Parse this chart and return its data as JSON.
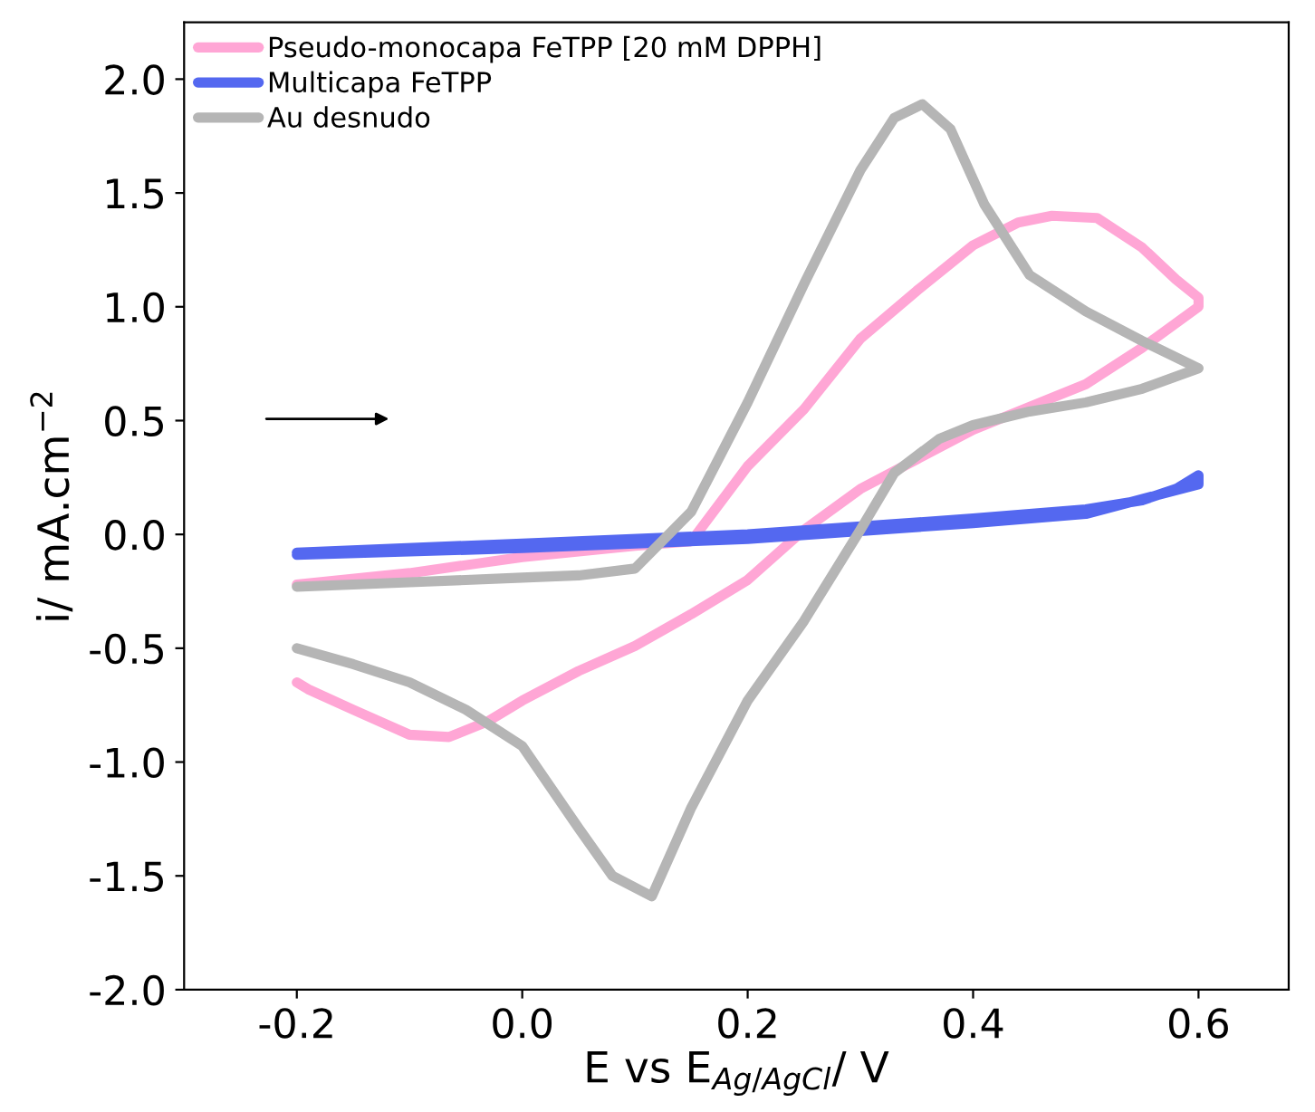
{
  "chart_data": {
    "type": "line",
    "xlabel": "E vs E$_{Ag/AgCl}$/ V",
    "ylabel": "i/ mA.cm$^{−2}$",
    "xlim": [
      -0.3,
      0.68
    ],
    "ylim": [
      -2.0,
      2.25
    ],
    "xticks": [
      -0.2,
      {
        "value": 0,
        "label": "0.0"
      },
      0.2,
      0.4,
      0.6
    ],
    "yticks": [
      {
        "value": -2,
        "label": "-2.0"
      },
      -1.5,
      {
        "value": -1,
        "label": "-1.0"
      },
      -0.5,
      {
        "value": 0,
        "label": "0.0"
      },
      0.5,
      {
        "value": 1,
        "label": "1.0"
      },
      1.5,
      {
        "value": 2,
        "label": "2.0"
      }
    ],
    "grid": false,
    "legend": "top left",
    "marker": "none",
    "line_style": "solid",
    "series": [
      {
        "name": "Pseudo-monocapa FeTPP [20 mM DPPH]",
        "color": "#ffa6d5",
        "x": [
          -0.2,
          -0.1,
          0.0,
          0.1,
          0.15,
          0.2,
          0.25,
          0.3,
          0.35,
          0.4,
          0.44,
          0.47,
          0.51,
          0.55,
          0.58,
          0.6,
          0.6,
          0.55,
          0.5,
          0.45,
          0.4,
          0.35,
          0.3,
          0.25,
          0.2,
          0.15,
          0.1,
          0.05,
          0.0,
          -0.03,
          -0.065,
          -0.1,
          -0.15,
          -0.19,
          -0.2
        ],
        "values": [
          -0.22,
          -0.17,
          -0.1,
          -0.05,
          -0.03,
          0.3,
          0.55,
          0.86,
          1.07,
          1.27,
          1.37,
          1.4,
          1.39,
          1.26,
          1.12,
          1.04,
          1.0,
          0.82,
          0.66,
          0.56,
          0.46,
          0.33,
          0.2,
          0.02,
          -0.2,
          -0.35,
          -0.49,
          -0.6,
          -0.73,
          -0.82,
          -0.89,
          -0.88,
          -0.77,
          -0.68,
          -0.65
        ]
      },
      {
        "name": "Multicapa FeTPP",
        "color": "#5468f0",
        "x": [
          -0.2,
          0.0,
          0.2,
          0.4,
          0.5,
          0.55,
          0.58,
          0.6,
          0.6,
          0.5,
          0.4,
          0.2,
          0.0,
          -0.2
        ],
        "values": [
          -0.08,
          -0.04,
          0.0,
          0.07,
          0.11,
          0.15,
          0.2,
          0.26,
          0.22,
          0.09,
          0.05,
          -0.02,
          -0.06,
          -0.09
        ]
      },
      {
        "name": "Au desnudo",
        "color": "#b5b5b5",
        "x": [
          -0.2,
          -0.1,
          0.0,
          0.05,
          0.1,
          0.15,
          0.2,
          0.25,
          0.3,
          0.33,
          0.355,
          0.38,
          0.41,
          0.45,
          0.5,
          0.55,
          0.6,
          0.6,
          0.55,
          0.5,
          0.45,
          0.4,
          0.37,
          0.33,
          0.3,
          0.25,
          0.2,
          0.15,
          0.115,
          0.08,
          0.05,
          0.0,
          -0.05,
          -0.1,
          -0.15,
          -0.2
        ],
        "values": [
          -0.23,
          -0.21,
          -0.19,
          -0.18,
          -0.15,
          0.1,
          0.58,
          1.1,
          1.6,
          1.83,
          1.89,
          1.78,
          1.45,
          1.14,
          0.98,
          0.85,
          0.73,
          0.73,
          0.64,
          0.58,
          0.54,
          0.48,
          0.42,
          0.27,
          0.02,
          -0.38,
          -0.73,
          -1.2,
          -1.59,
          -1.5,
          -1.29,
          -0.93,
          -0.77,
          -0.65,
          -0.57,
          -0.5
        ]
      }
    ]
  }
}
